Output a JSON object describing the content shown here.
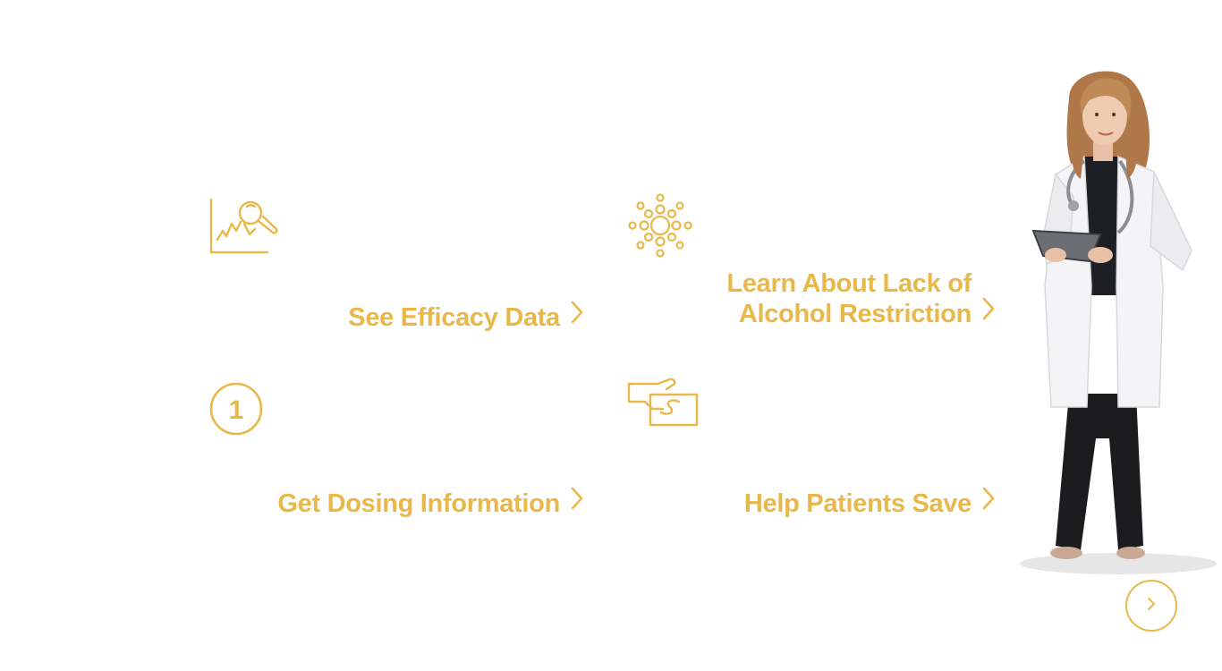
{
  "colors": {
    "accent": "#e8b84a",
    "background": "#ffffff"
  },
  "features": [
    {
      "icon": "chart-magnifier-icon",
      "label": "See Efficacy Data"
    },
    {
      "icon": "molecule-icon",
      "label": "Learn About Lack of\nAlcohol Restriction"
    },
    {
      "icon": "number-one-circle-icon",
      "icon_text": "1",
      "label": "Get Dosing Information"
    },
    {
      "icon": "hand-money-icon",
      "label": "Help Patients Save"
    }
  ],
  "navigation": {
    "next_icon": "chevron-right-icon"
  },
  "image": {
    "subject": "doctor-with-tablet"
  }
}
